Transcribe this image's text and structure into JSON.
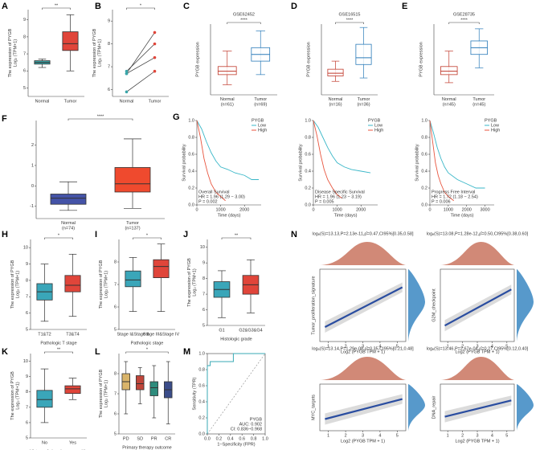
{
  "chart_data": [
    {
      "type": "box",
      "panel": "A",
      "ylabel": "The expression of PYGB\nLog₂ (TPM+1)",
      "categories": [
        "Normal",
        "Tumor"
      ],
      "colors": [
        "#3aa6a9",
        "#e0453a"
      ],
      "ylim": [
        4.5,
        9.6
      ],
      "yticks": [
        5,
        6,
        7,
        8,
        9
      ],
      "sig": "**",
      "values": [
        {
          "min": 6.2,
          "q1": 6.4,
          "median": 6.5,
          "q3": 6.6,
          "max": 6.7
        },
        {
          "min": 6.0,
          "q1": 7.2,
          "median": 7.6,
          "q3": 8.3,
          "max": 9.3
        }
      ]
    },
    {
      "type": "paired",
      "panel": "B",
      "ylabel": "The expression of PYGB\nLog₂ (TPM+1)",
      "categories": [
        "Normal",
        "Tumor"
      ],
      "colors": [
        "#3aa6a9",
        "#e0453a"
      ],
      "ylim": [
        5.7,
        9.5
      ],
      "yticks": [
        6,
        7,
        8,
        9
      ],
      "sig": "*",
      "pairs": [
        [
          6.7,
          8.5
        ],
        [
          6.8,
          8.0
        ],
        [
          6.7,
          7.4
        ],
        [
          5.9,
          6.8
        ]
      ]
    },
    {
      "type": "box",
      "panel": "C",
      "title": "GSE62452",
      "ylabel": "PYGB expression",
      "categories": [
        "Normal\n(n=61)",
        "Tumor\n(n=69)"
      ],
      "colors": [
        "#c0392b",
        "#2b7bb9"
      ],
      "fill_style": "outline",
      "ylim": [
        0,
        10.5
      ],
      "sig": "****",
      "values": [
        {
          "min": 1.5,
          "q1": 3.0,
          "median": 3.5,
          "q3": 4.2,
          "max": 6.5
        },
        {
          "min": 3.0,
          "q1": 5.0,
          "median": 6.0,
          "q3": 7.0,
          "max": 9.5
        }
      ]
    },
    {
      "type": "box",
      "panel": "D",
      "title": "GSE16515",
      "ylabel": "PYGB expression",
      "categories": [
        "Normal\n(n=16)",
        "Tumor\n(n=36)"
      ],
      "colors": [
        "#c0392b",
        "#2b7bb9"
      ],
      "fill_style": "outline",
      "ylim": [
        0,
        10.5
      ],
      "sig": "****",
      "values": [
        {
          "min": 2.0,
          "q1": 2.8,
          "median": 3.2,
          "q3": 3.8,
          "max": 5.0
        },
        {
          "min": 2.5,
          "q1": 4.5,
          "median": 5.5,
          "q3": 7.5,
          "max": 10.0
        }
      ]
    },
    {
      "type": "box",
      "panel": "E",
      "title": "GSE28735",
      "ylabel": "PYGB expression",
      "categories": [
        "Normal\n(n=45)",
        "Tumor\n(n=45)"
      ],
      "colors": [
        "#c0392b",
        "#2b7bb9"
      ],
      "fill_style": "outline",
      "ylim": [
        0,
        10.5
      ],
      "sig": "****",
      "values": [
        {
          "min": 1.8,
          "q1": 3.0,
          "median": 3.5,
          "q3": 4.2,
          "max": 6.5
        },
        {
          "min": 4.0,
          "q1": 6.0,
          "median": 7.0,
          "q3": 8.0,
          "max": 9.8
        }
      ]
    },
    {
      "type": "box",
      "panel": "F",
      "categories": [
        "Normal\n(n=74)",
        "Tumor\n(n=137)"
      ],
      "colors": [
        "#4453a7",
        "#ef4a2e"
      ],
      "ylim": [
        -1.6,
        3.2
      ],
      "yticks": [
        -1,
        0,
        1,
        2
      ],
      "sig": "****",
      "values": [
        {
          "min": -1.2,
          "q1": -0.9,
          "median": -0.6,
          "q3": -0.4,
          "max": 0.2
        },
        {
          "min": -1.1,
          "q1": -0.3,
          "median": 0.1,
          "q3": 0.9,
          "max": 2.3
        }
      ]
    },
    {
      "type": "km",
      "panel": "G",
      "ylabel": "Survival probability",
      "xlabel": "Time (days)",
      "legend_title": "PYGB",
      "xlim": [
        0,
        2700
      ],
      "xticks": [
        0,
        1000,
        2000
      ],
      "ylim": [
        0,
        1
      ],
      "yticks": [
        {
          "value": 0,
          "label": "0.0"
        },
        {
          "value": 0.2,
          "label": "0.2"
        },
        {
          "value": 0.4,
          "label": "0.4"
        },
        {
          "value": 0.6,
          "label": "0.6"
        },
        {
          "value": 0.8,
          "label": "0.8"
        },
        {
          "value": 1,
          "label": "1.0"
        }
      ],
      "annotations": [
        "Overall Survival",
        "HR = 1.96 (1.29 − 3.00)",
        "P = 0.002"
      ],
      "series": [
        {
          "name": "Low",
          "color": "#3ab7c8",
          "x": [
            0,
            200,
            400,
            600,
            800,
            1000,
            1300,
            1600,
            2000,
            2300,
            2600
          ],
          "values": [
            1,
            0.9,
            0.75,
            0.62,
            0.52,
            0.45,
            0.42,
            0.38,
            0.35,
            0.3,
            0.3
          ]
        },
        {
          "name": "High",
          "color": "#e8563f",
          "x": [
            0,
            150,
            300,
            450,
            600,
            800,
            1000,
            1200
          ],
          "values": [
            1,
            0.8,
            0.55,
            0.38,
            0.25,
            0.15,
            0.1,
            0.05
          ]
        }
      ]
    },
    {
      "type": "km",
      "ylabel": "Survival probability",
      "xlabel": "Time (days)",
      "legend_title": "PYGB",
      "xlim": [
        0,
        2700
      ],
      "xticks": [
        0,
        1000,
        2000
      ],
      "ylim": [
        0,
        1
      ],
      "yticks": [
        {
          "value": 0,
          "label": "0.0"
        },
        {
          "value": 0.2,
          "label": "0.2"
        },
        {
          "value": 0.4,
          "label": "0.4"
        },
        {
          "value": 0.6,
          "label": "0.6"
        },
        {
          "value": 0.8,
          "label": "0.8"
        },
        {
          "value": 1,
          "label": "1.0"
        }
      ],
      "annotations": [
        "Disease Specific Survival",
        "HR = 1.96 (1.23 − 3.19)",
        "P = 0.005"
      ],
      "series": [
        {
          "name": "Low",
          "color": "#3ab7c8",
          "x": [
            0,
            200,
            400,
            600,
            800,
            1000,
            1300,
            1600,
            2000,
            2400
          ],
          "values": [
            1,
            0.92,
            0.8,
            0.68,
            0.58,
            0.5,
            0.45,
            0.42,
            0.4,
            0.38
          ]
        },
        {
          "name": "High",
          "color": "#e8563f",
          "x": [
            0,
            150,
            300,
            450,
            600,
            800,
            1000,
            1200
          ],
          "values": [
            1,
            0.82,
            0.6,
            0.42,
            0.3,
            0.2,
            0.12,
            0.08
          ]
        }
      ]
    },
    {
      "type": "km",
      "ylabel": "Survival probability",
      "xlabel": "Time (days)",
      "legend_title": "PYGB",
      "xlim": [
        0,
        3500
      ],
      "xticks": [
        0,
        1000,
        2000,
        3000
      ],
      "ylim": [
        0,
        1
      ],
      "yticks": [
        {
          "value": 0,
          "label": "0.0"
        },
        {
          "value": 0.2,
          "label": "0.2"
        },
        {
          "value": 0.4,
          "label": "0.4"
        },
        {
          "value": 0.6,
          "label": "0.6"
        },
        {
          "value": 0.8,
          "label": "0.8"
        },
        {
          "value": 1,
          "label": "1.0"
        }
      ],
      "annotations": [
        "Progress Free Interval",
        "HR = 1.72 (1.18 − 2.54)",
        "P = 0.006"
      ],
      "series": [
        {
          "name": "Low",
          "color": "#3ab7c8",
          "x": [
            0,
            200,
            400,
            600,
            800,
            1000,
            1500,
            2000,
            2500,
            3000
          ],
          "values": [
            1,
            0.85,
            0.68,
            0.55,
            0.45,
            0.38,
            0.3,
            0.25,
            0.2,
            0.2
          ]
        },
        {
          "name": "High",
          "color": "#e8563f",
          "x": [
            0,
            150,
            300,
            450,
            600,
            800,
            1000,
            1300
          ],
          "values": [
            1,
            0.75,
            0.5,
            0.35,
            0.25,
            0.15,
            0.1,
            0.05
          ]
        }
      ]
    },
    {
      "type": "box",
      "panel": "H",
      "ylabel": "The expression of PYGB\nLog₂ (TPM+1)",
      "xlabel": "Pathologic T stage",
      "categories": [
        "T1&T2",
        "T3&T4"
      ],
      "colors": [
        "#3aa6b9",
        "#e0453a"
      ],
      "ylim": [
        5,
        10.5
      ],
      "yticks": [
        5,
        6,
        7,
        8,
        9,
        10
      ],
      "sig": "*",
      "values": [
        {
          "min": 5.5,
          "q1": 6.8,
          "median": 7.3,
          "q3": 7.8,
          "max": 9.0
        },
        {
          "min": 5.8,
          "q1": 7.3,
          "median": 7.7,
          "q3": 8.3,
          "max": 9.6
        }
      ]
    },
    {
      "type": "box",
      "panel": "I",
      "ylabel": "The expression of PYGB\nLog₂ (TPM+1)",
      "xlabel": "Pathologic stage",
      "categories": [
        "Stage I&Stage II",
        "Stage III&Stage IV"
      ],
      "colors": [
        "#3aa6b9",
        "#e0453a"
      ],
      "ylim": [
        5,
        9
      ],
      "yticks": [
        5,
        6,
        7,
        8
      ],
      "sig": "*",
      "values": [
        {
          "min": 5.8,
          "q1": 6.9,
          "median": 7.2,
          "q3": 7.6,
          "max": 8.2
        },
        {
          "min": 5.8,
          "q1": 7.3,
          "median": 7.8,
          "q3": 8.1,
          "max": 8.8
        }
      ]
    },
    {
      "type": "box",
      "panel": "J",
      "ylabel": "The expression of PYGB\nLog₂ (TPM+1)",
      "xlabel": "Histologic grade",
      "categories": [
        "G1",
        "G2&G3&G4"
      ],
      "colors": [
        "#3aa6b9",
        "#e0453a"
      ],
      "ylim": [
        5,
        10.5
      ],
      "yticks": [
        5,
        6,
        7,
        8,
        9,
        10
      ],
      "sig": "**",
      "values": [
        {
          "min": 5.5,
          "q1": 6.8,
          "median": 7.3,
          "q3": 7.8,
          "max": 8.5
        },
        {
          "min": 5.8,
          "q1": 7.0,
          "median": 7.6,
          "q3": 8.2,
          "max": 9.2
        }
      ]
    },
    {
      "type": "box",
      "panel": "K",
      "ylabel": "The expression of PYGB\nLog₂ (TPM+1)",
      "xlabel": "History of chronic pancreatitis",
      "categories": [
        "No",
        "Yes"
      ],
      "colors": [
        "#3aa6b9",
        "#e0453a"
      ],
      "ylim": [
        5,
        10.5
      ],
      "yticks": [
        5,
        6,
        7,
        8,
        9,
        10
      ],
      "sig": "**",
      "values": [
        {
          "min": 6.0,
          "q1": 7.0,
          "median": 7.5,
          "q3": 8.1,
          "max": 9.5
        },
        {
          "min": 7.5,
          "q1": 7.9,
          "median": 8.2,
          "q3": 8.4,
          "max": 8.9
        }
      ]
    },
    {
      "type": "box",
      "panel": "L",
      "ylabel": "The expression of PYGB\nLog₂ (TPM+1)",
      "xlabel": "Primary therapy outcome",
      "categories": [
        "PD",
        "SD",
        "PR",
        "CR"
      ],
      "colors": [
        "#d9b46a",
        "#c0453a",
        "#2e8c7d",
        "#3b4d8a"
      ],
      "ylim": [
        5,
        9
      ],
      "yticks": [
        5,
        6,
        7,
        8
      ],
      "sig": "*",
      "values": [
        {
          "min": 6.0,
          "q1": 7.2,
          "median": 7.6,
          "q3": 8.0,
          "max": 8.6
        },
        {
          "min": 6.5,
          "q1": 7.2,
          "median": 7.5,
          "q3": 7.9,
          "max": 8.3
        },
        {
          "min": 5.8,
          "q1": 6.9,
          "median": 7.3,
          "q3": 7.6,
          "max": 8.4
        },
        {
          "min": 5.5,
          "q1": 6.8,
          "median": 7.2,
          "q3": 7.6,
          "max": 8.6
        }
      ]
    },
    {
      "type": "roc",
      "panel": "M",
      "ylabel": "Sensitivity (TPR)",
      "xlabel": "1−Specificity (FPR)",
      "color": "#38aab5",
      "xlim": [
        0,
        1
      ],
      "ylim": [
        0,
        1
      ],
      "xticks": [
        {
          "value": 0,
          "label": "0.0"
        },
        {
          "value": 0.2,
          "label": "0.2"
        },
        {
          "value": 0.4,
          "label": "0.4"
        },
        {
          "value": 0.6,
          "label": "0.6"
        },
        {
          "value": 0.8,
          "label": "0.8"
        },
        {
          "value": 1,
          "label": "1.0"
        }
      ],
      "yticks": [
        {
          "value": 0,
          "label": "0.0"
        },
        {
          "value": 0.2,
          "label": "0.2"
        },
        {
          "value": 0.4,
          "label": "0.4"
        },
        {
          "value": 0.6,
          "label": "0.6"
        },
        {
          "value": 0.8,
          "label": "0.8"
        },
        {
          "value": 1,
          "label": "1.0"
        }
      ],
      "annotations": [
        "PYGB",
        "AUC: 0.902",
        "CI: 0.836−0.968"
      ],
      "x": [
        0,
        0,
        0.05,
        0.05,
        0.45,
        0.45,
        1
      ],
      "values": [
        0,
        0.85,
        0.85,
        0.9,
        0.9,
        1,
        1
      ]
    },
    {
      "type": "scatter",
      "panel": "N",
      "title": "logₑ(S)=13.13,P=2.13e-11,ρ̂=0.47,CI95%[0.35,0.58]",
      "ylabel": "Tumor_proliferation_signature",
      "xlabel": "Log2 (PYGB TPM + 1)",
      "color": "#2a4da0",
      "xlim": [
        0.5,
        5.5
      ],
      "xticks": [
        1,
        2,
        3,
        4,
        5
      ],
      "ylim": [
        0,
        1
      ],
      "fit_x": [
        0.8,
        5.3
      ],
      "fit_y": [
        0.2,
        0.75
      ]
    },
    {
      "type": "scatter",
      "title": "logₑ(S)=13.08,P=1.28e-12,ρ̂=0.50,CI95%[0.38,0.60]",
      "ylabel": "G2M_checkpoint",
      "xlabel": "Log2 (PYGB TPM + 1)",
      "color": "#2a4da0",
      "xlim": [
        0.5,
        5.5
      ],
      "xticks": [
        1,
        2,
        3,
        4,
        5
      ],
      "ylim": [
        0,
        1
      ],
      "fit_x": [
        0.8,
        5.3
      ],
      "fit_y": [
        0.22,
        0.72
      ]
    },
    {
      "type": "scatter",
      "title": "logₑ(S)=13.14,P=1.29e-08,ρ̂=0.35,CI95%[0.21,0.48]",
      "ylabel": "MYC_targets",
      "xlabel": "Log2 (PYGB TPM + 1)",
      "color": "#2a4da0",
      "xlim": [
        0.5,
        5.5
      ],
      "xticks": [
        1,
        2,
        3,
        4,
        5
      ],
      "ylim": [
        0,
        1
      ],
      "fit_x": [
        0.8,
        5.3
      ],
      "fit_y": [
        0.25,
        0.68
      ]
    },
    {
      "type": "scatter",
      "title": "logₑ(S)=13.46,P=2.67e-04,ρ̂=0.27,CI95%[0.12,0.40]",
      "ylabel": "DNA_repair",
      "xlabel": "Log2 (PYGB TPM + 1)",
      "color": "#2a4da0",
      "xlim": [
        0.5,
        5.5
      ],
      "xticks": [
        1,
        2,
        3,
        4,
        5
      ],
      "ylim": [
        0,
        1
      ],
      "fit_x": [
        0.8,
        5.3
      ],
      "fit_y": [
        0.3,
        0.65
      ]
    }
  ]
}
